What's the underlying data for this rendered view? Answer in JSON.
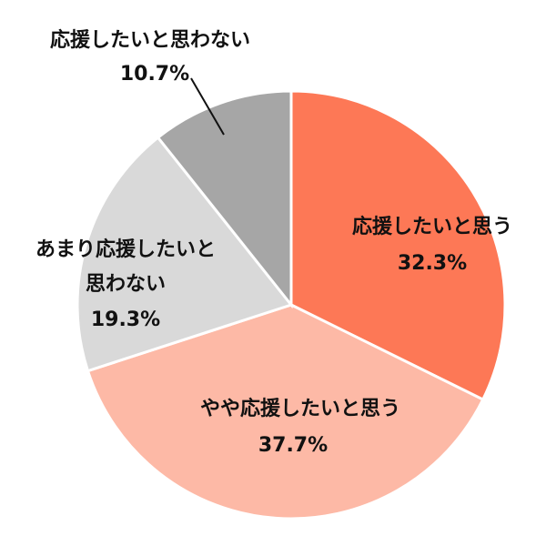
{
  "chart_data": {
    "type": "pie",
    "categories": [
      "応援したいと思う",
      "やや応援したいと思う",
      "あまり応援したいと思わない",
      "応援したいと思わない"
    ],
    "values": [
      32.3,
      37.7,
      19.3,
      10.7
    ],
    "value_labels": [
      "32.3%",
      "37.7%",
      "19.3%",
      "10.7%"
    ],
    "colors": [
      "#fd7856",
      "#fdb9a6",
      "#d9d9d9",
      "#a6a6a6"
    ]
  }
}
